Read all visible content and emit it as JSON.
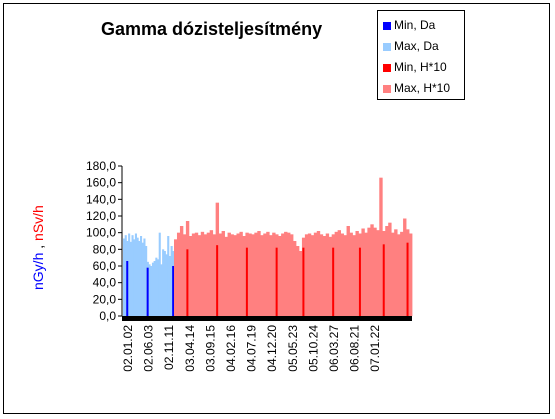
{
  "chart_data": {
    "type": "bar",
    "title": "Gamma dózisteljesítmény",
    "ylabel_parts": [
      "nGy/h",
      ",",
      "nSv/h"
    ],
    "ylim": [
      0,
      180
    ],
    "y_ticks": [
      "0,0",
      "20,0",
      "40,0",
      "60,0",
      "80,0",
      "100,0",
      "120,0",
      "140,0",
      "160,0",
      "180,0"
    ],
    "x_ticks": [
      "02.01.02",
      "02.06.03",
      "02.11.11",
      "03.04.14",
      "03.09.15",
      "04.02.16",
      "04.07.19",
      "04.12.20",
      "05.05.23",
      "05.10.24",
      "06.03.27",
      "06.08.21",
      "07.01.22"
    ],
    "legend": [
      "Min, Da",
      "Max, Da",
      "Min, H*10",
      "Max, H*10"
    ],
    "colors": {
      "min_da": "#0000ff",
      "max_da": "#99ccff",
      "min_h10": "#ff0000",
      "max_h10": "#ff8080"
    },
    "series": [
      {
        "name": "Max, Da",
        "color": "#99ccff",
        "values": [
          93,
          97,
          90,
          99,
          89,
          97,
          92,
          99,
          94,
          90,
          96,
          88,
          93,
          84,
          65,
          62,
          60,
          64,
          66,
          70,
          68,
          100,
          62,
          80,
          78,
          74,
          96,
          72,
          84,
          78
        ]
      },
      {
        "name": "Min, Da",
        "color": "#0000ff",
        "values": [
          0,
          0,
          66,
          0,
          0,
          0,
          0,
          0,
          0,
          0,
          0,
          0,
          0,
          0,
          58,
          0,
          0,
          0,
          0,
          0,
          0,
          0,
          0,
          0,
          0,
          0,
          0,
          0,
          0,
          60
        ]
      },
      {
        "name": "Max, H*10",
        "color": "#ff8080",
        "values": [
          92,
          100,
          108,
          98,
          114,
          96,
          99,
          100,
          97,
          101,
          98,
          100,
          103,
          98,
          136,
          99,
          102,
          95,
          100,
          98,
          97,
          99,
          101,
          96,
          100,
          99,
          98,
          100,
          102,
          97,
          99,
          101,
          97,
          100,
          98,
          96,
          99,
          101,
          100,
          98,
          90,
          84,
          78,
          94,
          98,
          99,
          97,
          100,
          102,
          98,
          96,
          99,
          95,
          98,
          101,
          103,
          99,
          97,
          108,
          100,
          97,
          102,
          99,
          105,
          100,
          106,
          110,
          106,
          103,
          166,
          102,
          108,
          112,
          100,
          104,
          98,
          101,
          117,
          104,
          99
        ]
      },
      {
        "name": "Min, H*10",
        "color": "#ff0000",
        "values": [
          0,
          0,
          0,
          0,
          80,
          0,
          0,
          0,
          0,
          0,
          0,
          0,
          0,
          0,
          85,
          0,
          0,
          0,
          0,
          0,
          0,
          0,
          0,
          0,
          82,
          0,
          0,
          0,
          0,
          0,
          0,
          0,
          0,
          0,
          82,
          0,
          0,
          0,
          0,
          0,
          0,
          0,
          0,
          82,
          0,
          0,
          0,
          0,
          0,
          0,
          0,
          0,
          0,
          82,
          0,
          0,
          0,
          0,
          0,
          0,
          0,
          0,
          82,
          0,
          0,
          0,
          0,
          0,
          0,
          0,
          86,
          0,
          0,
          0,
          0,
          0,
          0,
          0,
          88,
          0
        ]
      }
    ]
  }
}
